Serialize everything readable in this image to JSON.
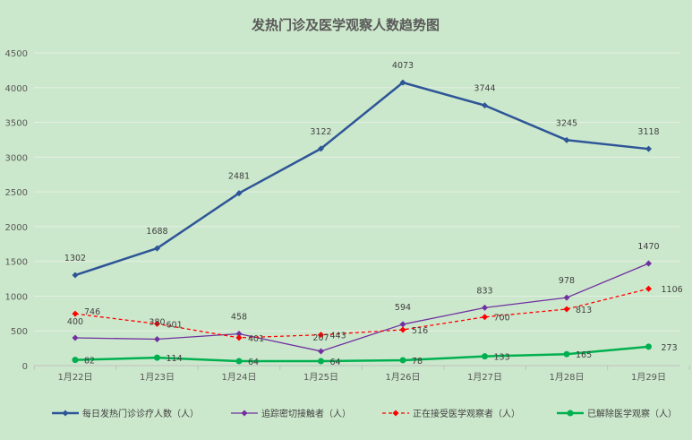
{
  "chart_data": {
    "type": "line",
    "title": "发热门诊及医学观察人数趋势图",
    "xlabel": "",
    "ylabel": "",
    "ylim": [
      0,
      4500
    ],
    "yticks": [
      0,
      500,
      1000,
      1500,
      2000,
      2500,
      3000,
      3500,
      4000,
      4500
    ],
    "grid": true,
    "legend_position": "bottom",
    "categories": [
      "1月22日",
      "1月23日",
      "1月24日",
      "1月25日",
      "1月26日",
      "1月27日",
      "1月28日",
      "1月29日"
    ],
    "series": [
      {
        "name": "每日发热门诊诊疗人数（人）",
        "values": [
          1302,
          1688,
          2481,
          3122,
          4073,
          3744,
          3245,
          3118
        ],
        "color": "#2e5597",
        "marker": "diamond",
        "dash": "solid"
      },
      {
        "name": "追踪密切接触者（人）",
        "values": [
          400,
          380,
          458,
          207,
          594,
          833,
          978,
          1470
        ],
        "color": "#7030a0",
        "marker": "diamond",
        "dash": "solid"
      },
      {
        "name": "正在接受医学观察者（人）",
        "values": [
          746,
          601,
          401,
          443,
          516,
          700,
          813,
          1106
        ],
        "color": "#ff0000",
        "marker": "diamond",
        "dash": "dashed"
      },
      {
        "name": "已解除医学观察（人）",
        "values": [
          82,
          114,
          64,
          64,
          78,
          133,
          165,
          273
        ],
        "color": "#00b050",
        "marker": "circle",
        "dash": "solid"
      }
    ]
  }
}
